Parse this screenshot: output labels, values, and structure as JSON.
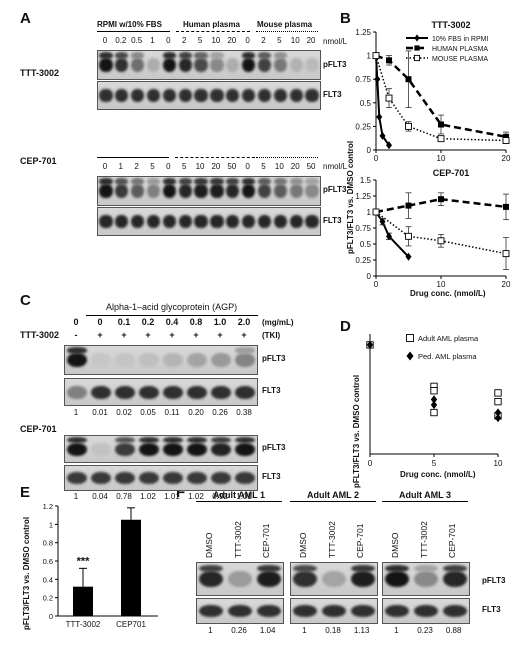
{
  "panels": {
    "A": {
      "label": "A",
      "conditions": [
        "RPMI w/10% FBS",
        "Human plasma",
        "Mouse plasma"
      ],
      "unit": "nmol/L",
      "blots": [
        {
          "drug": "TTT-3002",
          "doses": [
            "0",
            "0.2",
            "0.5",
            "1",
            "0",
            "2",
            "5",
            "10",
            "20",
            "0",
            "2",
            "5",
            "10",
            "20"
          ],
          "rows": [
            "pFLT3",
            "FLT3"
          ],
          "pflt3": [
            1,
            0.85,
            0.5,
            0.15,
            1,
            0.9,
            0.7,
            0.35,
            0.15,
            1,
            0.75,
            0.45,
            0.12,
            0.08
          ]
        },
        {
          "drug": "CEP-701",
          "doses": [
            "0",
            "1",
            "2",
            "5",
            "0",
            "5",
            "10",
            "20",
            "50",
            "0",
            "5",
            "10",
            "20",
            "50"
          ],
          "rows": [
            "pFLT3",
            "FLT3"
          ],
          "pflt3": [
            1,
            0.8,
            0.6,
            0.4,
            1,
            0.9,
            0.95,
            0.95,
            0.9,
            1,
            0.75,
            0.6,
            0.45,
            0.35
          ]
        }
      ]
    },
    "B": {
      "label": "B",
      "legend": [
        "10% FBS in RPMI",
        "HUMAN PLASMA",
        "MOUSE PLASMA"
      ],
      "ylabel": "pFLT3/FLT3 vs. DMSO control",
      "xlabel": "Drug conc. (nmol/L)"
    },
    "C": {
      "label": "C",
      "title": "Alpha-1–acid glycoprotein (AGP)",
      "agp": [
        "0",
        "0",
        "0.1",
        "0.2",
        "0.4",
        "0.8",
        "1.0",
        "2.0"
      ],
      "agp_unit": "(mg/mL)",
      "tki_row_label": "TTT-3002",
      "tki": [
        "-",
        "+",
        "+",
        "+",
        "+",
        "+",
        "+",
        "+"
      ],
      "tki_unit": "(TKI)",
      "blot1_drug": "",
      "blot1_quant": [
        "1",
        "0.01",
        "0.02",
        "0.05",
        "0.11",
        "0.20",
        "0.26",
        "0.38"
      ],
      "blot2_drug": "CEP-701",
      "blot2_quant": [
        "1",
        "0.04",
        "0.78",
        "1.02",
        "1.01",
        "1.02",
        "0.92",
        "1.01"
      ],
      "rows": [
        "pFLT3",
        "FLT3"
      ]
    },
    "D": {
      "label": "D",
      "legend": [
        "Adult AML plasma",
        "Ped. AML plasma"
      ],
      "ylabel": "pFLT3/FLT3 vs. DMSO control",
      "xlabel": "Drug conc. (nmol/L)"
    },
    "E": {
      "label": "E",
      "ylabel": "pFLT3/FLT3 vs. DMSO control",
      "significance": "***"
    },
    "F": {
      "label": "F",
      "samples": [
        {
          "name": "Adult AML 1",
          "lanes": [
            "DMSO",
            "TTT-3002",
            "CEP-701"
          ],
          "quant": [
            "1",
            "0.26",
            "1.04"
          ]
        },
        {
          "name": "Adult AML 2",
          "lanes": [
            "DMSO",
            "TTT-3002",
            "CEP-701"
          ],
          "quant": [
            "1",
            "0.18",
            "1.13"
          ]
        },
        {
          "name": "Adult AML 3",
          "lanes": [
            "DMSO",
            "TTT-3002",
            "CEP-701"
          ],
          "quant": [
            "1",
            "0.23",
            "0.88"
          ]
        }
      ],
      "rows": [
        "pFLT3",
        "FLT3"
      ]
    }
  },
  "chart_data": [
    {
      "type": "line",
      "title": "TTT-3002",
      "xlabel": "",
      "ylabel": "pFLT3/FLT3 vs. DMSO control",
      "xlim": [
        0,
        20
      ],
      "ylim": [
        0,
        1.25
      ],
      "xticks": [
        0,
        10,
        20
      ],
      "yticks": [
        0,
        0.25,
        0.5,
        0.75,
        1,
        1.25
      ],
      "series": [
        {
          "name": "10% FBS in RPMI",
          "style": "solid",
          "marker": "diamond",
          "x": [
            0,
            0.2,
            0.5,
            1,
            2
          ],
          "y": [
            1,
            0.75,
            0.35,
            0.15,
            0.05
          ],
          "err": [
            0,
            0,
            0,
            0,
            0
          ]
        },
        {
          "name": "HUMAN PLASMA",
          "style": "dashed",
          "marker": "square",
          "x": [
            0,
            2,
            5,
            10,
            20
          ],
          "y": [
            1,
            0.95,
            0.75,
            0.27,
            0.14
          ],
          "err": [
            0,
            0.05,
            0.3,
            0.1,
            0.05
          ]
        },
        {
          "name": "MOUSE PLASMA",
          "style": "dotted",
          "marker": "open-square",
          "x": [
            0,
            2,
            5,
            10,
            20
          ],
          "y": [
            1,
            0.55,
            0.25,
            0.12,
            0.1
          ],
          "err": [
            0,
            0.1,
            0.05,
            0.03,
            0.02
          ]
        }
      ]
    },
    {
      "type": "line",
      "title": "CEP-701",
      "xlabel": "Drug conc. (nmol/L)",
      "ylabel": "pFLT3/FLT3 vs. DMSO control",
      "xlim": [
        0,
        20
      ],
      "ylim": [
        0,
        1.5
      ],
      "xticks": [
        0,
        10,
        20
      ],
      "yticks": [
        0,
        0.25,
        0.5,
        0.75,
        1,
        1.25,
        1.5
      ],
      "series": [
        {
          "name": "10% FBS in RPMI",
          "style": "solid",
          "marker": "diamond",
          "x": [
            0,
            1,
            2,
            5
          ],
          "y": [
            1,
            0.85,
            0.62,
            0.3
          ],
          "err": [
            0,
            0.05,
            0.05,
            0
          ]
        },
        {
          "name": "HUMAN PLASMA",
          "style": "dashed",
          "marker": "square",
          "x": [
            0,
            5,
            10,
            20
          ],
          "y": [
            1,
            1.1,
            1.2,
            1.08
          ],
          "err": [
            0,
            0.2,
            0.1,
            0.2
          ]
        },
        {
          "name": "MOUSE PLASMA",
          "style": "dotted",
          "marker": "open-square",
          "x": [
            0,
            5,
            10,
            20
          ],
          "y": [
            1,
            0.62,
            0.55,
            0.35
          ],
          "err": [
            0,
            0.15,
            0.1,
            0.25
          ]
        }
      ]
    },
    {
      "type": "scatter",
      "xlabel": "Drug conc. (nmol/L)",
      "ylabel": "pFLT3/FLT3 vs. DMSO control",
      "xlim": [
        0,
        10
      ],
      "ylim": [
        0,
        1.1
      ],
      "xticks": [
        0,
        5,
        10
      ],
      "series": [
        {
          "name": "Adult AML plasma",
          "marker": "open-square",
          "x": [
            0,
            5,
            5,
            5,
            10,
            10,
            10
          ],
          "y": [
            1,
            0.62,
            0.58,
            0.38,
            0.56,
            0.48,
            0.35
          ]
        },
        {
          "name": "Ped. AML plasma",
          "marker": "diamond",
          "x": [
            0,
            5,
            5,
            10,
            10
          ],
          "y": [
            1,
            0.5,
            0.45,
            0.38,
            0.33
          ]
        }
      ]
    },
    {
      "type": "bar",
      "categories": [
        "TTT-3002",
        "CEP701"
      ],
      "values": [
        0.32,
        1.05
      ],
      "errors": [
        0.2,
        0.13
      ],
      "ylabel": "pFLT3/FLT3 vs. DMSO control",
      "ylim": [
        0,
        1.2
      ],
      "yticks": [
        0,
        0.2,
        0.4,
        0.6,
        0.8,
        1,
        1.2
      ]
    }
  ]
}
